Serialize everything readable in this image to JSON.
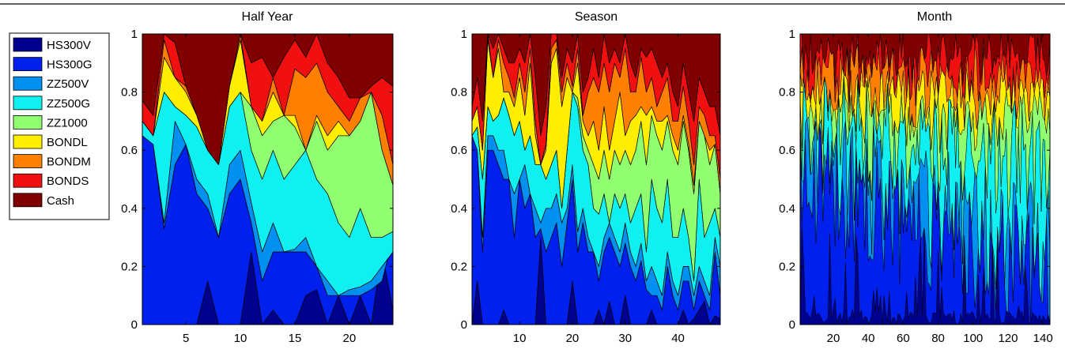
{
  "chart_data": {
    "type": "area",
    "stacked": true,
    "legend": {
      "placement": "left",
      "entries": [
        {
          "name": "HS300V",
          "color": "#00008f"
        },
        {
          "name": "HS300G",
          "color": "#0020ee"
        },
        {
          "name": "ZZ500V",
          "color": "#0090ef"
        },
        {
          "name": "ZZ500G",
          "color": "#10f0f0"
        },
        {
          "name": "ZZ1000",
          "color": "#90ff70"
        },
        {
          "name": "BONDL",
          "color": "#ffee00"
        },
        {
          "name": "BONDM",
          "color": "#ff7f00"
        },
        {
          "name": "BONDS",
          "color": "#f01010"
        },
        {
          "name": "Cash",
          "color": "#800000"
        }
      ]
    },
    "panels": [
      {
        "title": "Half Year",
        "xlim": [
          1,
          24
        ],
        "ylim": [
          0,
          1
        ],
        "xticks": [
          5,
          10,
          15,
          20
        ],
        "yticks": [
          0,
          0.2,
          0.4,
          0.6,
          0.8,
          1
        ],
        "ytick_labels": [
          "0",
          "0.2",
          "0.4",
          "0.6",
          "0.8",
          "1"
        ],
        "boundaries": [
          [
            0,
            0,
            0,
            0,
            0,
            0,
            0.15,
            0,
            0,
            0,
            0.25,
            0,
            0.05,
            0,
            0,
            0.1,
            0.12,
            0,
            0.1,
            0,
            0.1,
            0,
            0.25,
            0.05
          ],
          [
            0.65,
            0.62,
            0.33,
            0.55,
            0.62,
            0.45,
            0.4,
            0.3,
            0.45,
            0.5,
            0.35,
            0.15,
            0.25,
            0.25,
            0.25,
            0.25,
            0.2,
            0.1,
            0.1,
            0.1,
            0.1,
            0.12,
            0.15,
            0.3
          ],
          [
            0.65,
            0.62,
            0.35,
            0.7,
            0.62,
            0.5,
            0.45,
            0.3,
            0.55,
            0.6,
            0.42,
            0.25,
            0.35,
            0.25,
            0.26,
            0.3,
            0.2,
            0.15,
            0.1,
            0.12,
            0.13,
            0.15,
            0.2,
            0.25
          ],
          [
            0.7,
            0.65,
            0.8,
            0.75,
            0.72,
            0.68,
            0.6,
            0.55,
            0.75,
            0.8,
            0.6,
            0.5,
            0.6,
            0.5,
            0.55,
            0.6,
            0.5,
            0.45,
            0.35,
            0.3,
            0.4,
            0.3,
            0.3,
            0.32
          ],
          [
            0.7,
            0.65,
            0.8,
            0.75,
            0.72,
            0.68,
            0.6,
            0.55,
            0.75,
            0.8,
            0.75,
            0.65,
            0.7,
            0.72,
            0.68,
            0.6,
            0.7,
            0.6,
            0.65,
            0.65,
            0.7,
            0.8,
            0.6,
            0.48
          ],
          [
            0.7,
            0.65,
            0.92,
            0.85,
            0.8,
            0.72,
            0.6,
            0.55,
            0.82,
            0.98,
            0.75,
            0.7,
            0.8,
            0.72,
            0.72,
            0.6,
            0.72,
            0.65,
            0.7,
            0.65,
            0.7,
            0.8,
            0.6,
            0.48
          ],
          [
            0.7,
            0.65,
            0.98,
            0.85,
            0.82,
            0.72,
            0.6,
            0.55,
            0.82,
            1,
            0.75,
            0.7,
            0.85,
            0.72,
            0.88,
            0.85,
            0.9,
            0.8,
            0.75,
            0.7,
            0.78,
            0.8,
            0.72,
            0.55
          ],
          [
            0.77,
            0.72,
            1,
            0.97,
            0.82,
            0.72,
            0.6,
            0.55,
            0.82,
            1,
            0.9,
            0.92,
            0.85,
            0.92,
            0.98,
            0.92,
            1,
            0.9,
            0.85,
            0.78,
            0.78,
            0.82,
            0.85,
            0.82
          ]
        ]
      },
      {
        "title": "Season",
        "xlim": [
          1,
          48
        ],
        "ylim": [
          0,
          1
        ],
        "xticks": [
          10,
          20,
          30,
          40
        ],
        "yticks": [
          0,
          0.2,
          0.4,
          0.6,
          0.8,
          1
        ],
        "ytick_labels": [
          "0",
          "0.2",
          "0.4",
          "0.6",
          "0.8",
          "1"
        ],
        "boundaries": [
          [
            0,
            0.15,
            0,
            0,
            0,
            0,
            0.05,
            0,
            0,
            0,
            0,
            0,
            0,
            0.3,
            0,
            0,
            0,
            0,
            0,
            0.15,
            0,
            0,
            0,
            0,
            0.05,
            0,
            0.08,
            0,
            0,
            0.1,
            0,
            0,
            0,
            0,
            0.05,
            0,
            0,
            0,
            0,
            0,
            0.05,
            0,
            0.02,
            0.05,
            0.08,
            0,
            0.03,
            0.02
          ],
          [
            0.65,
            0.6,
            0.25,
            0.6,
            0.6,
            0.55,
            0.5,
            0.5,
            0.3,
            0.5,
            0.4,
            0.45,
            0.3,
            0.33,
            0.25,
            0.3,
            0.35,
            0.2,
            0.35,
            0.5,
            0.25,
            0.35,
            0.25,
            0.25,
            0.15,
            0.25,
            0.3,
            0.25,
            0.2,
            0.28,
            0.2,
            0.15,
            0.22,
            0.12,
            0.1,
            0.1,
            0.05,
            0.2,
            0.1,
            0.05,
            0.15,
            0.15,
            0.05,
            0.15,
            0.1,
            0.05,
            0.25,
            0.1
          ],
          [
            0.65,
            0.6,
            0.3,
            0.65,
            0.65,
            0.6,
            0.6,
            0.5,
            0.45,
            0.5,
            0.55,
            0.45,
            0.4,
            0.35,
            0.4,
            0.4,
            0.45,
            0.35,
            0.4,
            0.55,
            0.32,
            0.4,
            0.3,
            0.25,
            0.2,
            0.3,
            0.35,
            0.3,
            0.25,
            0.35,
            0.25,
            0.2,
            0.28,
            0.15,
            0.2,
            0.15,
            0.1,
            0.25,
            0.15,
            0.1,
            0.2,
            0.2,
            0.1,
            0.2,
            0.15,
            0.1,
            0.3,
            0.2
          ],
          [
            0.65,
            0.68,
            0.5,
            0.75,
            0.7,
            0.72,
            0.78,
            0.72,
            0.65,
            0.7,
            0.6,
            0.65,
            0.55,
            0.55,
            0.5,
            0.55,
            0.6,
            0.4,
            0.6,
            0.8,
            0.75,
            0.6,
            0.55,
            0.4,
            0.38,
            0.45,
            0.35,
            0.45,
            0.4,
            0.45,
            0.35,
            0.4,
            0.45,
            0.25,
            0.5,
            0.4,
            0.35,
            0.5,
            0.3,
            0.3,
            0.4,
            0.3,
            0.15,
            0.5,
            0.3,
            0.35,
            0.4,
            0.3
          ],
          [
            0.65,
            0.68,
            0.5,
            0.75,
            0.7,
            0.72,
            0.78,
            0.72,
            0.65,
            0.7,
            0.6,
            0.65,
            0.55,
            0.55,
            0.5,
            0.55,
            0.6,
            0.4,
            0.6,
            0.8,
            0.78,
            0.65,
            0.6,
            0.55,
            0.5,
            0.6,
            0.5,
            0.6,
            0.55,
            0.6,
            0.55,
            0.6,
            0.7,
            0.55,
            0.72,
            0.65,
            0.6,
            0.7,
            0.6,
            0.55,
            0.7,
            0.6,
            0.45,
            0.7,
            0.65,
            0.55,
            0.62,
            0.45
          ],
          [
            0.7,
            0.75,
            0.6,
            0.98,
            0.85,
            0.95,
            0.8,
            0.8,
            0.75,
            0.85,
            0.72,
            0.9,
            0.65,
            0.55,
            0.6,
            0.9,
            0.95,
            0.75,
            0.85,
            0.8,
            0.9,
            0.7,
            0.65,
            0.7,
            0.6,
            0.75,
            0.6,
            0.7,
            0.8,
            0.65,
            0.7,
            0.72,
            0.75,
            0.72,
            0.75,
            0.7,
            0.7,
            0.72,
            0.65,
            0.6,
            0.72,
            0.62,
            0.48,
            0.7,
            0.65,
            0.6,
            0.62,
            0.45
          ],
          [
            0.7,
            0.75,
            0.6,
            1,
            0.85,
            0.98,
            0.9,
            0.85,
            0.78,
            0.9,
            0.8,
            0.95,
            0.7,
            0.55,
            0.62,
            0.95,
            0.98,
            0.8,
            0.9,
            0.82,
            0.95,
            0.72,
            0.8,
            0.85,
            0.8,
            0.9,
            0.8,
            0.9,
            0.85,
            0.95,
            0.8,
            0.8,
            0.92,
            0.8,
            0.85,
            0.75,
            0.8,
            0.85,
            0.7,
            0.7,
            0.82,
            0.7,
            0.55,
            0.75,
            0.72,
            0.65,
            0.65,
            0.5
          ],
          [
            0.75,
            0.85,
            0.7,
            1,
            0.95,
            1,
            0.95,
            0.9,
            0.9,
            0.95,
            0.9,
            1,
            0.85,
            0.65,
            0.75,
            1,
            1,
            0.85,
            0.95,
            0.9,
            1,
            0.8,
            0.85,
            0.95,
            0.85,
            1,
            0.9,
            0.95,
            0.9,
            1,
            0.9,
            0.85,
            0.95,
            0.92,
            0.95,
            0.9,
            0.85,
            0.9,
            0.8,
            0.75,
            0.9,
            0.8,
            0.7,
            0.85,
            0.8,
            0.75,
            0.75,
            0.65
          ]
        ]
      },
      {
        "title": "Month",
        "xlim": [
          1,
          144
        ],
        "ylim": [
          0,
          1
        ],
        "xticks": [
          20,
          40,
          60,
          80,
          100,
          120,
          140
        ],
        "yticks": [
          0,
          0.2,
          0.4,
          0.6,
          0.8,
          1
        ],
        "ytick_labels": [
          "0",
          "0.2",
          "0.4",
          "0.6",
          "0.8",
          "1"
        ],
        "generated": true,
        "base_levels": [
          0.08,
          0.35,
          0.42,
          0.55,
          0.7,
          0.78,
          0.86,
          0.93
        ]
      }
    ]
  }
}
